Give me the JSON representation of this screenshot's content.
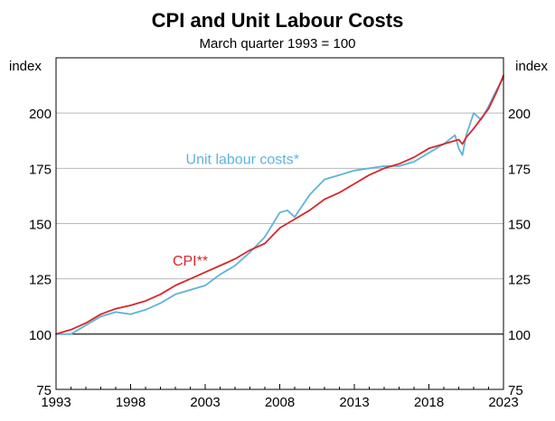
{
  "chart_data": {
    "type": "line",
    "title": "CPI and Unit Labour Costs",
    "subtitle": "March quarter 1993 = 100",
    "ylabel_left": "index",
    "ylabel_right": "index",
    "ylim": [
      75,
      225
    ],
    "yticks": [
      75,
      100,
      125,
      150,
      175,
      200
    ],
    "xlim": [
      1993,
      2023
    ],
    "xticks": [
      1993,
      1998,
      2003,
      2008,
      2013,
      2018,
      2023
    ],
    "reference_line": 100,
    "grid": true,
    "series": [
      {
        "name": "CPI**",
        "color": "#d7262b",
        "x": [
          1993,
          1994,
          1995,
          1996,
          1997,
          1998,
          1999,
          2000,
          2001,
          2002,
          2003,
          2004,
          2005,
          2006,
          2007,
          2008,
          2009,
          2010,
          2011,
          2012,
          2013,
          2014,
          2015,
          2016,
          2017,
          2018,
          2019,
          2020,
          2020.25,
          2020.5,
          2021,
          2022,
          2022.5,
          2023
        ],
        "values": [
          100,
          102,
          105,
          109,
          111.5,
          113,
          115,
          118,
          122,
          125,
          128,
          131,
          134,
          138,
          141,
          148,
          152,
          156,
          161,
          164,
          168,
          172,
          175,
          177,
          180,
          184,
          186,
          188,
          186,
          189,
          193,
          202,
          209,
          217
        ]
      },
      {
        "name": "Unit labour costs*",
        "color": "#5fb3d9",
        "x": [
          1993,
          1994,
          1995,
          1996,
          1997,
          1998,
          1999,
          2000,
          2001,
          2002,
          2003,
          2004,
          2005,
          2006,
          2007,
          2008,
          2008.5,
          2009,
          2010,
          2011,
          2012,
          2013,
          2014,
          2015,
          2016,
          2017,
          2018,
          2019,
          2019.75,
          2020,
          2020.25,
          2020.5,
          2021,
          2021.5,
          2022,
          2022.5,
          2023
        ],
        "values": [
          100,
          100,
          104,
          108,
          110,
          109,
          111,
          114,
          118,
          120,
          122,
          127,
          131,
          137,
          144,
          155,
          156,
          153,
          163,
          170,
          172,
          174,
          175,
          176,
          176,
          178,
          182,
          186,
          190,
          184,
          181,
          190,
          200,
          197,
          203,
          210,
          216
        ]
      }
    ],
    "annotations": [
      {
        "text": "Unit labour costs*",
        "color": "#5fb3d9",
        "x": 2005.5,
        "y": 177
      },
      {
        "text": "CPI**",
        "color": "#d7262b",
        "x": 2002,
        "y": 131
      }
    ]
  }
}
